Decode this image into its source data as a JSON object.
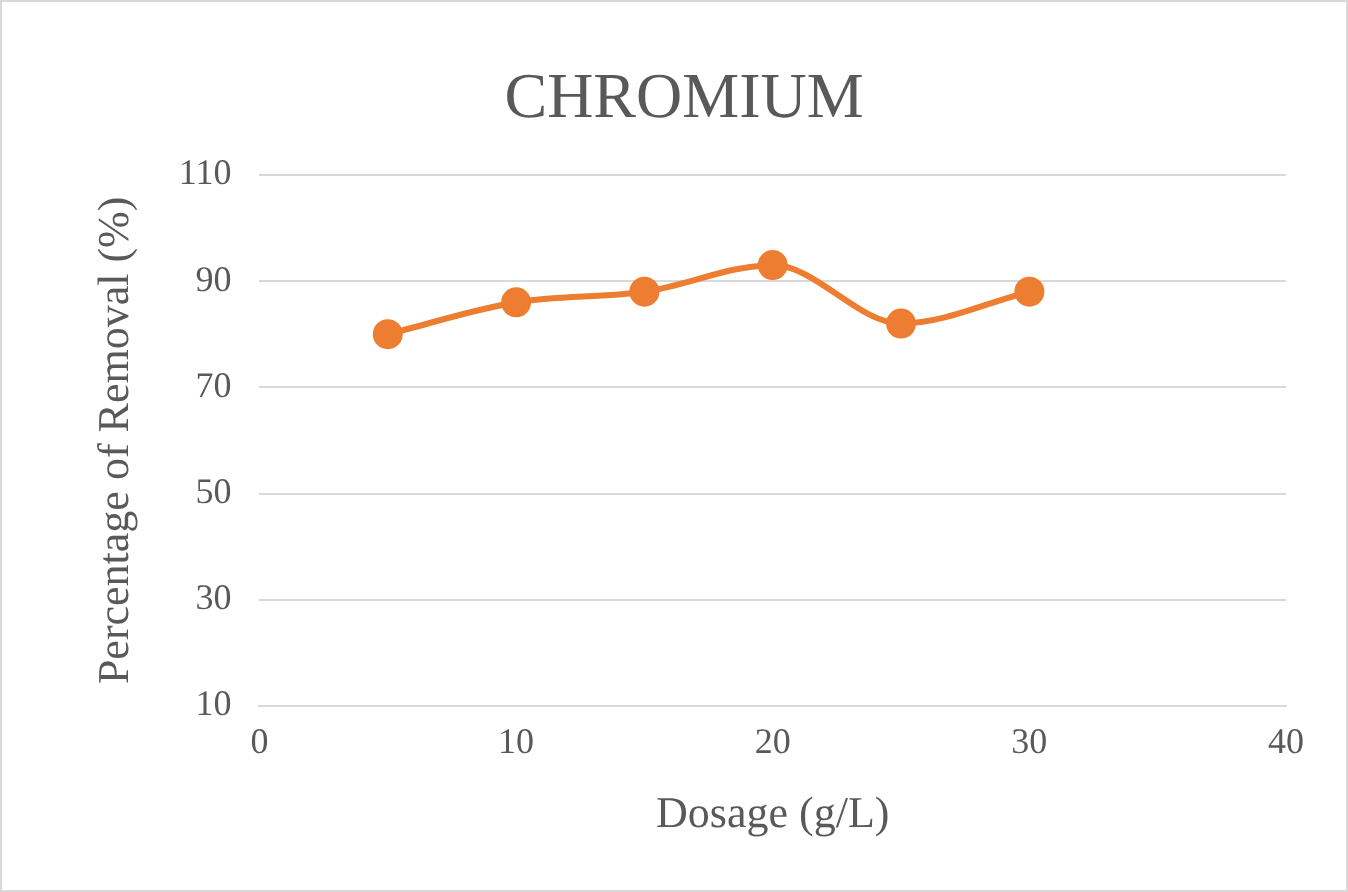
{
  "chart_data": {
    "type": "line",
    "title": "CHROMIUM",
    "xlabel": "Dosage (g/L)",
    "ylabel": "Percentage of Removal (%)",
    "x": [
      5,
      10,
      15,
      20,
      25,
      30
    ],
    "series": [
      {
        "color": "#ed7d31",
        "values": [
          80,
          86,
          88,
          93,
          82,
          88
        ]
      }
    ],
    "xlim": [
      0,
      40
    ],
    "xticks": [
      0,
      10,
      20,
      30,
      40
    ],
    "ylim": [
      10,
      110
    ],
    "yticks": [
      10,
      30,
      50,
      70,
      90,
      110
    ],
    "grid": "y",
    "legend": false,
    "marker": "circle",
    "line_style": "solid"
  }
}
